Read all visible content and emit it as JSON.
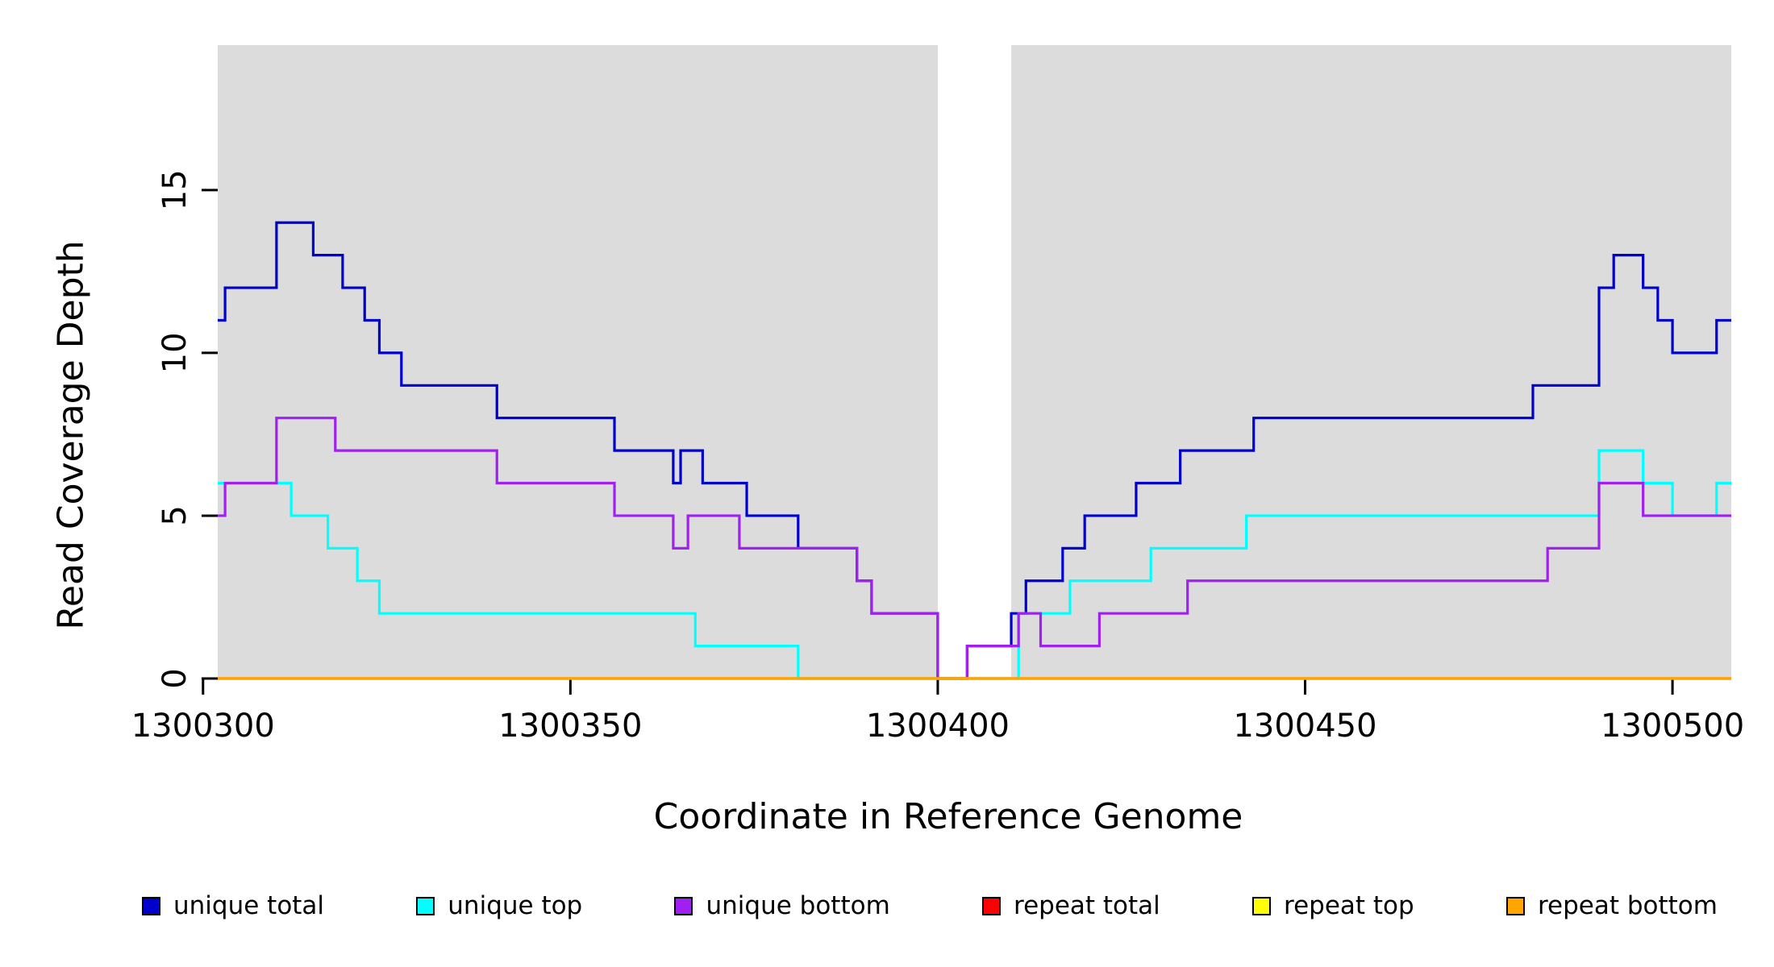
{
  "chart_data": {
    "type": "line",
    "step": true,
    "title": "",
    "xlabel": "Coordinate in Reference Genome",
    "ylabel": "Read Coverage Depth",
    "xlim": [
      1300302,
      1300508
    ],
    "ylim": [
      0,
      19.45
    ],
    "x_ticks": [
      1300300,
      1300350,
      1300400,
      1300450,
      1300500
    ],
    "y_ticks": [
      0,
      5,
      10,
      15
    ],
    "grid": false,
    "legend_position": "bottom",
    "panel_bg": "#dcdcdc",
    "gap_region": {
      "x0": 1300400,
      "x1": 1300410,
      "color": "#ffffff"
    },
    "series": [
      {
        "name": "unique total",
        "color": "#0000cd",
        "points": [
          [
            1300302,
            11
          ],
          [
            1300303,
            12
          ],
          [
            1300310,
            14
          ],
          [
            1300315,
            13
          ],
          [
            1300319,
            12
          ],
          [
            1300322,
            11
          ],
          [
            1300324,
            10
          ],
          [
            1300327,
            9
          ],
          [
            1300340,
            8
          ],
          [
            1300356,
            7
          ],
          [
            1300364,
            6
          ],
          [
            1300365,
            7
          ],
          [
            1300368,
            6
          ],
          [
            1300374,
            5
          ],
          [
            1300381,
            4
          ],
          [
            1300389,
            3
          ],
          [
            1300391,
            2
          ],
          [
            1300400,
            0
          ],
          [
            1300404,
            1
          ],
          [
            1300410,
            2
          ],
          [
            1300412,
            3
          ],
          [
            1300417,
            4
          ],
          [
            1300420,
            5
          ],
          [
            1300427,
            6
          ],
          [
            1300433,
            7
          ],
          [
            1300443,
            8
          ],
          [
            1300481,
            9
          ],
          [
            1300490,
            12
          ],
          [
            1300492,
            13
          ],
          [
            1300496,
            12
          ],
          [
            1300498,
            11
          ],
          [
            1300500,
            10
          ],
          [
            1300506,
            11
          ]
        ]
      },
      {
        "name": "unique top",
        "color": "#00ffff",
        "points": [
          [
            1300302,
            6
          ],
          [
            1300312,
            5
          ],
          [
            1300317,
            4
          ],
          [
            1300321,
            3
          ],
          [
            1300324,
            2
          ],
          [
            1300367,
            1
          ],
          [
            1300381,
            0
          ],
          [
            1300411,
            2
          ],
          [
            1300418,
            3
          ],
          [
            1300429,
            4
          ],
          [
            1300442,
            5
          ],
          [
            1300490,
            7
          ],
          [
            1300496,
            6
          ],
          [
            1300500,
            5
          ],
          [
            1300506,
            6
          ]
        ]
      },
      {
        "name": "unique bottom",
        "color": "#a020f0",
        "points": [
          [
            1300302,
            5
          ],
          [
            1300303,
            6
          ],
          [
            1300310,
            8
          ],
          [
            1300318,
            7
          ],
          [
            1300340,
            6
          ],
          [
            1300356,
            5
          ],
          [
            1300364,
            4
          ],
          [
            1300366,
            5
          ],
          [
            1300373,
            4
          ],
          [
            1300389,
            3
          ],
          [
            1300391,
            2
          ],
          [
            1300400,
            0
          ],
          [
            1300404,
            1
          ],
          [
            1300411,
            2
          ],
          [
            1300414,
            1
          ],
          [
            1300422,
            2
          ],
          [
            1300434,
            3
          ],
          [
            1300483,
            4
          ],
          [
            1300490,
            6
          ],
          [
            1300496,
            5
          ]
        ]
      },
      {
        "name": "repeat total",
        "color": "#ff0000",
        "points": [
          [
            1300302,
            0
          ]
        ]
      },
      {
        "name": "repeat top",
        "color": "#ffff00",
        "points": [
          [
            1300302,
            0
          ]
        ]
      },
      {
        "name": "repeat bottom",
        "color": "#ffa500",
        "points": [
          [
            1300302,
            0
          ]
        ]
      }
    ]
  }
}
